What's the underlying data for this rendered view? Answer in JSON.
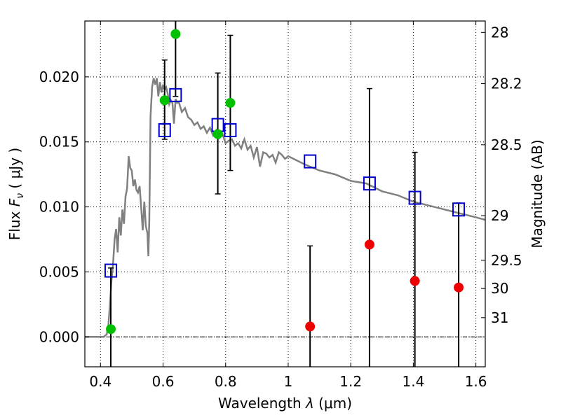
{
  "chart_data": {
    "type": "scatter",
    "xlabel": "Wavelength  λ (μm)",
    "ylabel": "Flux  F_ν  ( μJy )",
    "ylabel_right": "Magnitude (AB)",
    "xlim": [
      0.35,
      1.63
    ],
    "ylim": [
      -0.0023,
      0.0243
    ],
    "x_ticks": [
      0.4,
      0.6,
      0.8,
      1.0,
      1.2,
      1.4,
      1.6
    ],
    "x_tick_labels": [
      "0.4",
      "0.6",
      "0.8",
      "1",
      "1.2",
      "1.4",
      "1.6"
    ],
    "y_ticks": [
      0.0,
      0.005,
      0.01,
      0.015,
      0.02
    ],
    "y_tick_labels": [
      "0.000",
      "0.005",
      "0.010",
      "0.015",
      "0.020"
    ],
    "right_ticks": [
      {
        "label": "28",
        "flux": 0.02342
      },
      {
        "label": "28.2",
        "flux": 0.01948
      },
      {
        "label": "28.5",
        "flux": 0.01478
      },
      {
        "label": "29",
        "flux": 0.00933
      },
      {
        "label": "29.5",
        "flux": 0.00589
      },
      {
        "label": "30",
        "flux": 0.00372
      },
      {
        "label": "31",
        "flux": 0.00148
      }
    ],
    "grid": true,
    "model_spectrum": {
      "name": "",
      "color": "#808080",
      "x": [
        0.35,
        0.41,
        0.42,
        0.425,
        0.43,
        0.435,
        0.44,
        0.445,
        0.45,
        0.455,
        0.46,
        0.465,
        0.47,
        0.475,
        0.48,
        0.485,
        0.49,
        0.495,
        0.5,
        0.505,
        0.51,
        0.515,
        0.52,
        0.525,
        0.53,
        0.535,
        0.54,
        0.545,
        0.55,
        0.553,
        0.556,
        0.56,
        0.565,
        0.57,
        0.575,
        0.58,
        0.585,
        0.59,
        0.595,
        0.6,
        0.605,
        0.61,
        0.615,
        0.62,
        0.625,
        0.63,
        0.635,
        0.64,
        0.645,
        0.65,
        0.66,
        0.67,
        0.68,
        0.69,
        0.7,
        0.71,
        0.72,
        0.73,
        0.74,
        0.75,
        0.76,
        0.77,
        0.78,
        0.79,
        0.8,
        0.81,
        0.82,
        0.83,
        0.84,
        0.85,
        0.86,
        0.87,
        0.88,
        0.89,
        0.9,
        0.91,
        0.92,
        0.93,
        0.94,
        0.95,
        0.96,
        0.97,
        0.98,
        0.99,
        1.0,
        1.05,
        1.1,
        1.15,
        1.2,
        1.25,
        1.3,
        1.35,
        1.4,
        1.45,
        1.5,
        1.55,
        1.6,
        1.63
      ],
      "y": [
        0.0,
        0.0,
        0.0002,
        0.0008,
        0.0025,
        0.0043,
        0.0055,
        0.0075,
        0.0083,
        0.0065,
        0.0092,
        0.0078,
        0.0098,
        0.0087,
        0.0108,
        0.0114,
        0.0139,
        0.013,
        0.0128,
        0.0116,
        0.0121,
        0.0113,
        0.0111,
        0.0116,
        0.01,
        0.0082,
        0.0104,
        0.0085,
        0.008,
        0.0062,
        0.009,
        0.017,
        0.0192,
        0.0199,
        0.0194,
        0.0199,
        0.0185,
        0.0196,
        0.0188,
        0.0194,
        0.019,
        0.0192,
        0.0187,
        0.0179,
        0.0182,
        0.018,
        0.0164,
        0.0183,
        0.018,
        0.0181,
        0.0173,
        0.0176,
        0.0169,
        0.0167,
        0.0163,
        0.0165,
        0.016,
        0.0162,
        0.0157,
        0.0161,
        0.0155,
        0.0159,
        0.0153,
        0.0156,
        0.0149,
        0.0151,
        0.0152,
        0.0147,
        0.0149,
        0.0145,
        0.0152,
        0.0144,
        0.0147,
        0.0138,
        0.0146,
        0.0131,
        0.0142,
        0.0141,
        0.0138,
        0.014,
        0.0134,
        0.0142,
        0.014,
        0.0137,
        0.0139,
        0.0133,
        0.0128,
        0.0125,
        0.012,
        0.0118,
        0.0112,
        0.0109,
        0.0104,
        0.0101,
        0.0098,
        0.0095,
        0.0092,
        0.009
      ]
    },
    "series": [
      {
        "marker": "square-open",
        "color": "#0000cc",
        "x": [
          0.433,
          0.605,
          0.64,
          0.775,
          0.815,
          1.07,
          1.26,
          1.405,
          1.545
        ],
        "y": [
          0.0051,
          0.0159,
          0.0186,
          0.0163,
          0.0159,
          0.0135,
          0.0118,
          0.0107,
          0.0098
        ]
      },
      {
        "marker": "circle-filled",
        "color": "#00c000",
        "x": [
          0.433,
          0.605,
          0.64,
          0.775,
          0.815
        ],
        "y": [
          0.0006,
          0.0182,
          0.0233,
          0.0156,
          0.018
        ],
        "errors": [
          [
            -0.0023,
            0.0053
          ],
          [
            0.0152,
            0.0213
          ],
          [
            0.0185,
            0.0243
          ],
          [
            0.011,
            0.0203
          ],
          [
            0.0128,
            0.0232
          ]
        ]
      },
      {
        "marker": "circle-filled",
        "color": "#ee0000",
        "x": [
          1.07,
          1.26,
          1.405,
          1.545
        ],
        "y": [
          0.0008,
          0.0071,
          0.0043,
          0.0038
        ],
        "errors": [
          [
            -0.0023,
            0.007
          ],
          [
            -0.0023,
            0.0191
          ],
          [
            -0.0023,
            0.0142
          ],
          [
            -0.0023,
            0.0103
          ]
        ]
      }
    ]
  }
}
